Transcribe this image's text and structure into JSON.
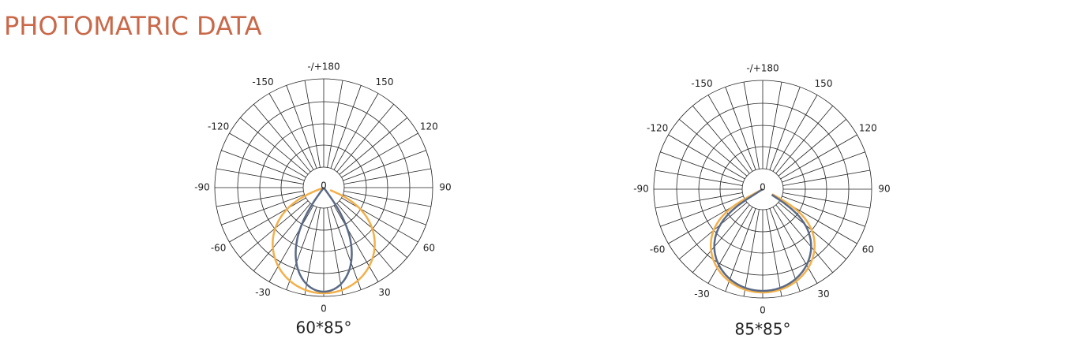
{
  "header": {
    "title": "PHOTOMATRIC DATA"
  },
  "diagrams": [
    {
      "center_label": "0",
      "angle_labels": [
        "-/+180",
        "150",
        "120",
        "90",
        "60",
        "30",
        "0",
        "-30",
        "-60",
        "-90",
        "-120",
        "-150"
      ],
      "caption": "60*85°"
    },
    {
      "center_label": "0",
      "angle_labels": [
        "-/+180",
        "150",
        "120",
        "90",
        "60",
        "30",
        "0",
        "-30",
        "-60",
        "-90",
        "-120",
        "-150"
      ],
      "caption": "85*85°"
    }
  ]
}
